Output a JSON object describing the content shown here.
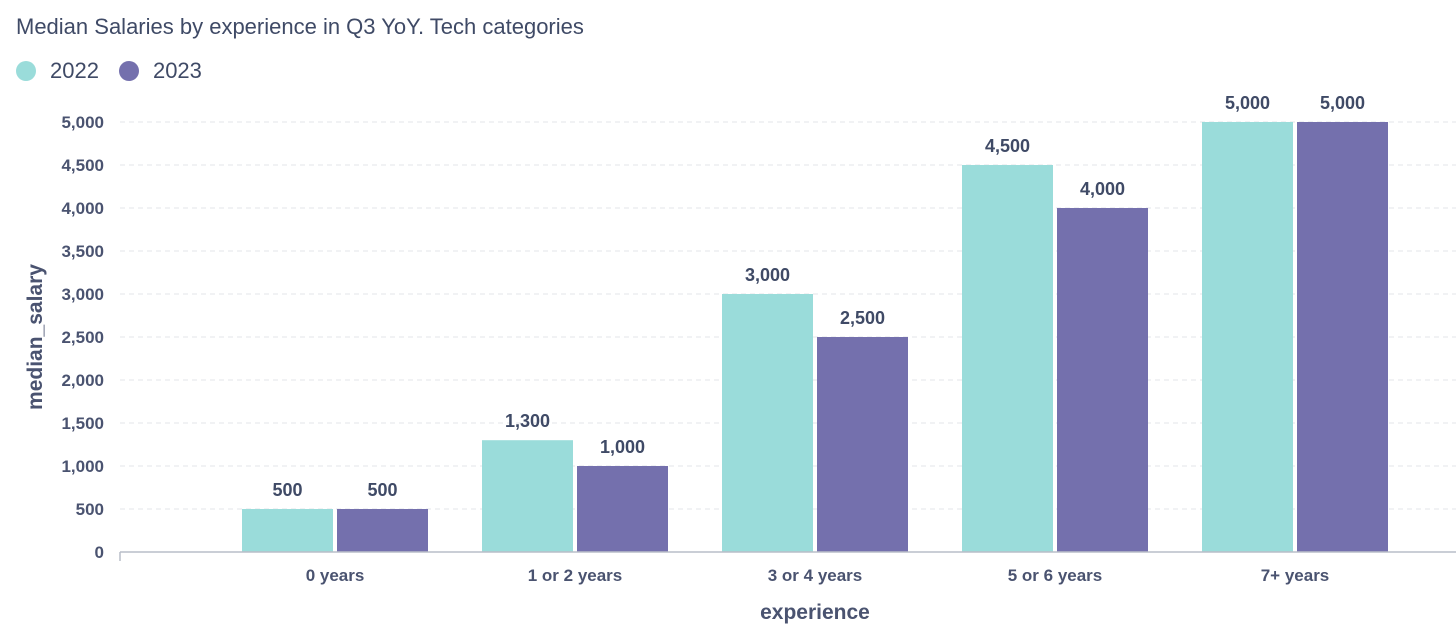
{
  "chart_data": {
    "type": "bar",
    "title": "Median Salaries by experience in Q3 YoY. Tech categories",
    "xlabel": "experience",
    "ylabel": "median_salary",
    "categories": [
      "0 years",
      "1 or 2 years",
      "3 or 4 years",
      "5 or 6 years",
      "7+ years"
    ],
    "series": [
      {
        "name": "2022",
        "color": "#9adcda",
        "values": [
          500,
          1300,
          3000,
          4500,
          5000
        ]
      },
      {
        "name": "2023",
        "color": "#7470ad",
        "values": [
          500,
          1000,
          2500,
          4000,
          5000
        ]
      }
    ],
    "ylim": [
      0,
      5000
    ],
    "yticks": [
      0,
      500,
      1000,
      1500,
      2000,
      2500,
      3000,
      3500,
      4000,
      4500,
      5000
    ],
    "ytick_labels": [
      "0",
      "500",
      "1,000",
      "1,500",
      "2,000",
      "2,500",
      "3,000",
      "3,500",
      "4,000",
      "4,500",
      "5,000"
    ],
    "data_labels": [
      [
        "500",
        "1,300",
        "3,000",
        "4,500",
        "5,000"
      ],
      [
        "500",
        "1,000",
        "2,500",
        "4,000",
        "5,000"
      ]
    ],
    "grid": true,
    "legend_position": "top-left"
  }
}
